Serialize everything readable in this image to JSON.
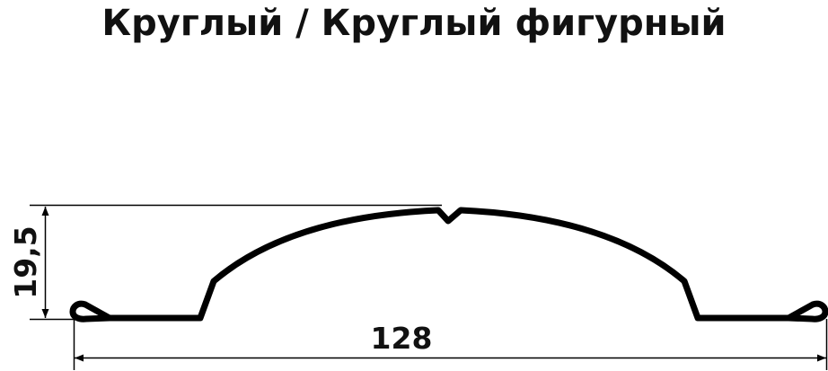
{
  "title": "Круглый / Круглый фигурный",
  "dimensions": {
    "height": "19,5",
    "width": "128"
  },
  "colors": {
    "profile": "#000000",
    "dimension_lines": "#000000"
  }
}
